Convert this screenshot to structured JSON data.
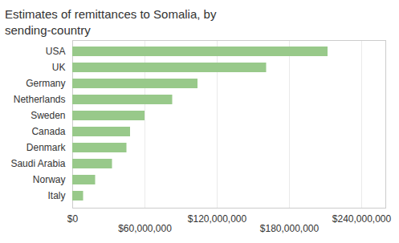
{
  "chart_data": {
    "type": "bar",
    "orientation": "horizontal",
    "title": "Estimates of remittances to Somalia, by sending-country",
    "categories": [
      "USA",
      "UK",
      "Germany",
      "Netherlands",
      "Sweden",
      "Canada",
      "Denmark",
      "Saudi Arabia",
      "Norway",
      "Italy"
    ],
    "values": [
      212000000,
      161000000,
      104000000,
      83000000,
      60000000,
      48000000,
      45000000,
      33000000,
      19000000,
      9000000
    ],
    "color": "#98c98a",
    "xlim": [
      0,
      260000000
    ],
    "xticks": [
      {
        "value": 0,
        "label": "$0"
      },
      {
        "value": 60000000,
        "label": "$60,000,000"
      },
      {
        "value": 120000000,
        "label": "$120,000,000"
      },
      {
        "value": 180000000,
        "label": "$180,000,000"
      },
      {
        "value": 240000000,
        "label": "$240,000,000"
      }
    ],
    "grid": true
  }
}
